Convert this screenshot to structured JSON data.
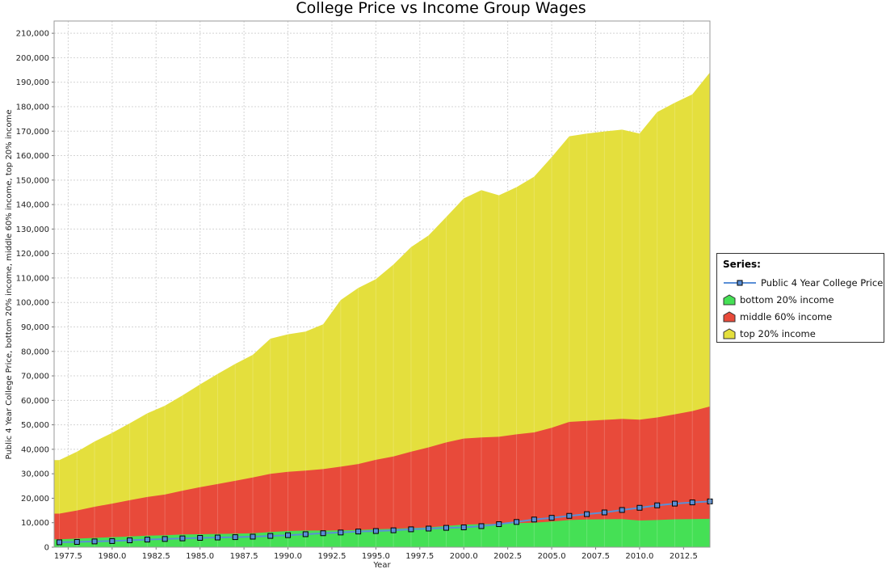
{
  "chart_data": {
    "type": "area",
    "title": "College Price vs Income Group Wages",
    "xlabel": "Year",
    "ylabel": "Public 4 Year College Price, bottom 20% income, middle 60% income, top 20% income",
    "xlim": [
      1976.7,
      2014
    ],
    "ylim": [
      0,
      215000
    ],
    "x_ticks": [
      "1977.5",
      "1980.0",
      "1982.5",
      "1985.0",
      "1987.5",
      "1990.0",
      "1992.5",
      "1995.0",
      "1997.5",
      "2000.0",
      "2002.5",
      "2005.0",
      "2007.5",
      "2010.0",
      "2012.5"
    ],
    "y_ticks": [
      "0",
      "10,000",
      "20,000",
      "30,000",
      "40,000",
      "50,000",
      "60,000",
      "70,000",
      "80,000",
      "90,000",
      "100,000",
      "110,000",
      "120,000",
      "130,000",
      "140,000",
      "150,000",
      "160,000",
      "170,000",
      "180,000",
      "190,000",
      "200,000",
      "210,000"
    ],
    "grid": true,
    "stacked": true,
    "legend_placement": "right",
    "legend_title": "Series:",
    "x": [
      1977,
      1978,
      1979,
      1980,
      1981,
      1982,
      1983,
      1984,
      1985,
      1986,
      1987,
      1988,
      1989,
      1990,
      1991,
      1992,
      1993,
      1994,
      1995,
      1996,
      1997,
      1998,
      1999,
      2000,
      2001,
      2002,
      2003,
      2004,
      2005,
      2006,
      2007,
      2008,
      2009,
      2010,
      2011,
      2012,
      2013,
      2014
    ],
    "series": [
      {
        "name": "bottom 20% income",
        "kind": "area",
        "color": "#45e055",
        "values": [
          3200,
          3500,
          3800,
          4100,
          4400,
          4700,
          4900,
          5200,
          5300,
          5400,
          5500,
          5700,
          6200,
          6600,
          6800,
          6800,
          6900,
          7000,
          7300,
          7500,
          7800,
          8100,
          8700,
          9200,
          9400,
          9500,
          9800,
          10000,
          10500,
          11100,
          11300,
          11400,
          11500,
          10900,
          11100,
          11400,
          11500,
          11600
        ]
      },
      {
        "name": "middle 60% income",
        "kind": "area",
        "color": "#e84a3a",
        "values": [
          13700,
          15000,
          16500,
          17800,
          19200,
          20500,
          21500,
          23100,
          24500,
          25800,
          27100,
          28500,
          30000,
          30800,
          31300,
          31900,
          32900,
          34000,
          35700,
          37100,
          39000,
          40800,
          42800,
          44400,
          44800,
          45100,
          46100,
          46900,
          48800,
          51200,
          51600,
          52000,
          52400,
          52100,
          53000,
          54300,
          55600,
          57500
        ]
      },
      {
        "name": "top 20% income",
        "kind": "area",
        "color": "#e4df3d",
        "values": [
          35600,
          39000,
          43200,
          46700,
          50600,
          54700,
          57800,
          62000,
          66500,
          70800,
          74900,
          78600,
          85200,
          87000,
          88100,
          91100,
          101000,
          105900,
          109500,
          115500,
          122600,
          127400,
          134900,
          142500,
          145900,
          143800,
          147100,
          151400,
          159400,
          167900,
          169000,
          169900,
          170600,
          169000,
          177800,
          181600,
          185000,
          194000
        ]
      },
      {
        "name": "Public 4 Year College Price",
        "kind": "line",
        "color": "#5a8fd6",
        "values": [
          2000,
          2150,
          2350,
          2500,
          2800,
          3100,
          3350,
          3600,
          3800,
          3950,
          4100,
          4300,
          4600,
          4900,
          5300,
          5700,
          6000,
          6400,
          6600,
          6900,
          7300,
          7600,
          7900,
          8100,
          8600,
          9400,
          10300,
          11300,
          12000,
          12800,
          13500,
          14200,
          15200,
          16100,
          17100,
          17800,
          18300,
          18700
        ]
      }
    ]
  }
}
